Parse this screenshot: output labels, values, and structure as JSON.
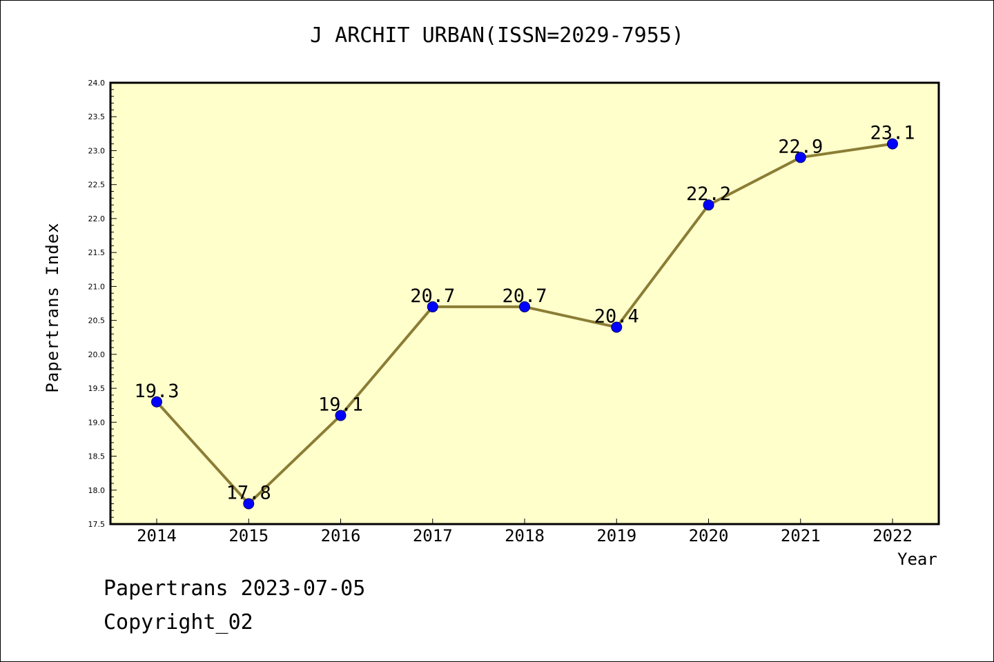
{
  "title": "J ARCHIT URBAN(ISSN=2029-7955)",
  "footer": {
    "line1": "Papertrans 2023-07-05",
    "line2": "Copyright_02"
  },
  "colors": {
    "plot_background": "#ffffcc",
    "line": "#8b7d35",
    "marker": "#0000ff",
    "axis": "#000000"
  },
  "chart_data": {
    "type": "line",
    "title": "J ARCHIT URBAN(ISSN=2029-7955)",
    "xlabel": "Year",
    "ylabel": "Papertrans Index",
    "categories": [
      "2014",
      "2015",
      "2016",
      "2017",
      "2018",
      "2019",
      "2020",
      "2021",
      "2022"
    ],
    "values": [
      19.3,
      17.8,
      19.1,
      20.7,
      20.7,
      20.4,
      22.2,
      22.9,
      23.1
    ],
    "data_labels": [
      "19.3",
      "17.8",
      "19.1",
      "20.7",
      "20.7",
      "20.4",
      "22.2",
      "22.9",
      "23.1"
    ],
    "ylim": [
      17.5,
      24.0
    ],
    "yticks": [
      "17.5",
      "18.0",
      "18.5",
      "19.0",
      "19.5",
      "20.0",
      "20.5",
      "21.0",
      "21.5",
      "22.0",
      "22.5",
      "23.0",
      "23.5",
      "24.0"
    ],
    "grid": false,
    "legend": "none",
    "marker": "circle"
  }
}
